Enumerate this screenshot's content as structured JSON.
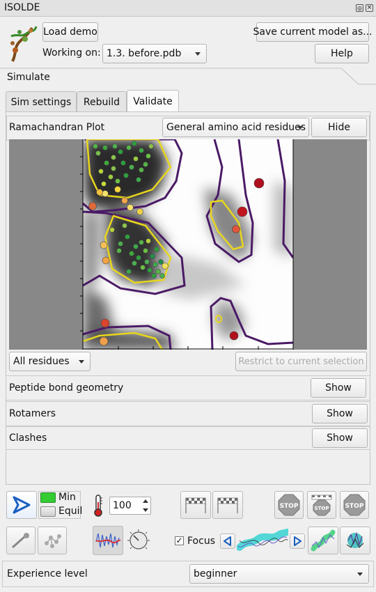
{
  "window": {
    "title": "ISOLDE"
  },
  "top": {
    "load_demo": "Load demo",
    "save_model": "Save current model as...",
    "working_on_label": "Working on:",
    "model_selected": "1.3. before.pdb",
    "help": "Help"
  },
  "simulate_tab": "Simulate",
  "tabs": [
    {
      "label": "Sim settings"
    },
    {
      "label": "Rebuild"
    },
    {
      "label": "Validate"
    }
  ],
  "rama": {
    "title": "Ramachandran Plot",
    "residue_type": "General amino acid residues",
    "hide": "Hide",
    "residue_filter": "All residues",
    "restrict": "Restrict to current selection"
  },
  "sections": {
    "peptide": {
      "label": "Peptide bond geometry",
      "button": "Show"
    },
    "rotamers": {
      "label": "Rotamers",
      "button": "Show"
    },
    "clashes": {
      "label": "Clashes",
      "button": "Show"
    }
  },
  "controls": {
    "min_label": "Min",
    "equil_label": "Equil",
    "temperature": "100",
    "focus_label": "Focus",
    "focus_checked": "✓",
    "stop_text": "STOP",
    "min_color": "#33cc33"
  },
  "experience": {
    "label": "Experience level",
    "value": "beginner"
  },
  "icons": [
    "isolde-logo-icon",
    "start-sim-icon",
    "thermometer-icon",
    "checkpoint-save-icon",
    "checkpoint-revert-icon",
    "stop-discard-icon",
    "stop-checkpoint-icon",
    "stop-icon",
    "tug-atom-icon",
    "tug-residue-icon",
    "trace-icon",
    "knob-icon",
    "focus-prev-icon",
    "focus-next-icon",
    "mask-map-icon",
    "spotlight-icon"
  ]
}
